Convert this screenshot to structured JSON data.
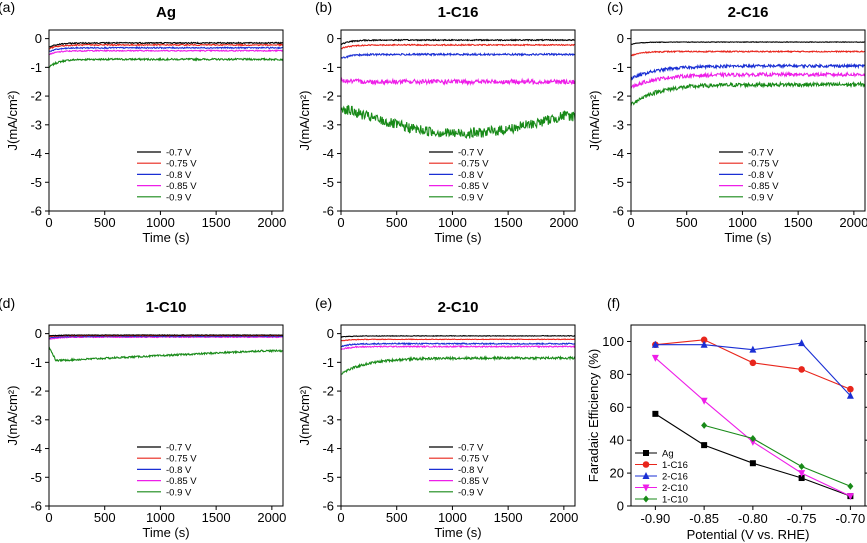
{
  "colors": {
    "black": "#000000",
    "red": "#e8261c",
    "blue": "#1a2fd4",
    "magenta": "#ee1ee8",
    "green": "#188a18"
  },
  "chart_data": [
    {
      "type": "line",
      "panel_label": "(a)",
      "title": "Ag",
      "xlabel": "Time (s)",
      "ylabel": "J(mA/cm²)",
      "xlim": [
        0,
        2100
      ],
      "ylim": [
        -6,
        0.3
      ],
      "x_ticks": [
        "0",
        "500",
        "1000",
        "1500",
        "2000"
      ],
      "y_ticks": [
        "0",
        "-1",
        "-2",
        "-3",
        "-4",
        "-5",
        "-6"
      ],
      "legend_position": "bottom-center",
      "series": [
        {
          "name": "-0.7 V",
          "color": "black",
          "start": -0.3,
          "end": -0.15,
          "noise": 0.02,
          "shape": "flat"
        },
        {
          "name": "-0.75 V",
          "color": "red",
          "start": -0.35,
          "end": -0.22,
          "noise": 0.02,
          "shape": "flat"
        },
        {
          "name": "-0.8 V",
          "color": "blue",
          "start": -0.45,
          "end": -0.32,
          "noise": 0.02,
          "shape": "flat"
        },
        {
          "name": "-0.85 V",
          "color": "magenta",
          "start": -0.55,
          "end": -0.42,
          "noise": 0.02,
          "shape": "flat"
        },
        {
          "name": "-0.9 V",
          "color": "green",
          "start": -1.0,
          "end": -0.72,
          "noise": 0.03,
          "shape": "flat"
        }
      ]
    },
    {
      "type": "line",
      "panel_label": "(b)",
      "title": "1-C16",
      "xlabel": "Time (s)",
      "ylabel": "J(mA/cm²)",
      "xlim": [
        0,
        2100
      ],
      "ylim": [
        -6,
        0.3
      ],
      "x_ticks": [
        "0",
        "500",
        "1000",
        "1500",
        "2000"
      ],
      "y_ticks": [
        "0",
        "-1",
        "-2",
        "-3",
        "-4",
        "-5",
        "-6"
      ],
      "legend_position": "bottom-center",
      "series": [
        {
          "name": "-0.7 V",
          "color": "black",
          "start": -0.2,
          "end": -0.05,
          "noise": 0.02,
          "shape": "flat"
        },
        {
          "name": "-0.75 V",
          "color": "red",
          "start": -0.35,
          "end": -0.22,
          "noise": 0.02,
          "shape": "flat"
        },
        {
          "name": "-0.8 V",
          "color": "blue",
          "start": -0.7,
          "end": -0.55,
          "noise": 0.03,
          "shape": "flat"
        },
        {
          "name": "-0.85 V",
          "color": "magenta",
          "start": -1.45,
          "end": -1.5,
          "noise": 0.08,
          "shape": "flat"
        },
        {
          "name": "-0.9 V",
          "color": "green",
          "start": -2.4,
          "end": -2.7,
          "noise": 0.18,
          "shape": "dip",
          "dip": -3.3
        }
      ]
    },
    {
      "type": "line",
      "panel_label": "(c)",
      "title": "2-C16",
      "xlabel": "Time (s)",
      "ylabel": "J(mA/cm²)",
      "xlim": [
        0,
        2100
      ],
      "ylim": [
        -6,
        0.3
      ],
      "x_ticks": [
        "0",
        "500",
        "1000",
        "1500",
        "2000"
      ],
      "y_ticks": [
        "0",
        "-1",
        "-2",
        "-3",
        "-4",
        "-5",
        "-6"
      ],
      "legend_position": "bottom-center",
      "series": [
        {
          "name": "-0.7 V",
          "color": "black",
          "start": -0.2,
          "end": -0.12,
          "noise": 0.01,
          "shape": "flat"
        },
        {
          "name": "-0.75 V",
          "color": "red",
          "start": -0.6,
          "end": -0.45,
          "noise": 0.02,
          "shape": "flat"
        },
        {
          "name": "-0.8 V",
          "color": "blue",
          "start": -1.4,
          "end": -0.95,
          "noise": 0.05,
          "shape": "rise"
        },
        {
          "name": "-0.85 V",
          "color": "magenta",
          "start": -1.7,
          "end": -1.25,
          "noise": 0.06,
          "shape": "rise"
        },
        {
          "name": "-0.9 V",
          "color": "green",
          "start": -2.3,
          "end": -1.6,
          "noise": 0.07,
          "shape": "rise"
        }
      ]
    },
    {
      "type": "line",
      "panel_label": "(d)",
      "title": "1-C10",
      "xlabel": "Time (s)",
      "ylabel": "J(mA/cm²)",
      "xlim": [
        0,
        2100
      ],
      "ylim": [
        -6,
        0.3
      ],
      "x_ticks": [
        "0",
        "500",
        "1000",
        "1500",
        "2000"
      ],
      "y_ticks": [
        "0",
        "-1",
        "-2",
        "-3",
        "-4",
        "-5",
        "-6"
      ],
      "legend_position": "bottom-center",
      "series": [
        {
          "name": "-0.7 V",
          "color": "black",
          "start": -0.08,
          "end": -0.05,
          "noise": 0.01,
          "shape": "flat"
        },
        {
          "name": "-0.75 V",
          "color": "red",
          "start": -0.1,
          "end": -0.07,
          "noise": 0.01,
          "shape": "flat"
        },
        {
          "name": "-0.8 V",
          "color": "blue",
          "start": -0.15,
          "end": -0.1,
          "noise": 0.01,
          "shape": "flat"
        },
        {
          "name": "-0.85 V",
          "color": "magenta",
          "start": -0.2,
          "end": -0.12,
          "noise": 0.015,
          "shape": "flat"
        },
        {
          "name": "-0.9 V",
          "color": "green",
          "start": -0.95,
          "end": -0.6,
          "noise": 0.03,
          "shape": "drop"
        }
      ]
    },
    {
      "type": "line",
      "panel_label": "(e)",
      "title": "2-C10",
      "xlabel": "Time (s)",
      "ylabel": "J(mA/cm²)",
      "xlim": [
        0,
        2100
      ],
      "ylim": [
        -6,
        0.3
      ],
      "x_ticks": [
        "0",
        "500",
        "1000",
        "1500",
        "2000"
      ],
      "y_ticks": [
        "0",
        "-1",
        "-2",
        "-3",
        "-4",
        "-5",
        "-6"
      ],
      "legend_position": "bottom-center",
      "series": [
        {
          "name": "-0.7 V",
          "color": "black",
          "start": -0.12,
          "end": -0.08,
          "noise": 0.01,
          "shape": "flat"
        },
        {
          "name": "-0.75 V",
          "color": "red",
          "start": -0.25,
          "end": -0.2,
          "noise": 0.01,
          "shape": "flat"
        },
        {
          "name": "-0.8 V",
          "color": "blue",
          "start": -0.45,
          "end": -0.35,
          "noise": 0.02,
          "shape": "flat"
        },
        {
          "name": "-0.85 V",
          "color": "magenta",
          "start": -0.55,
          "end": -0.45,
          "noise": 0.02,
          "shape": "flat"
        },
        {
          "name": "-0.9 V",
          "color": "green",
          "start": -1.4,
          "end": -0.85,
          "noise": 0.04,
          "shape": "rise"
        }
      ]
    },
    {
      "type": "line",
      "panel_label": "(f)",
      "title": "",
      "xlabel": "Potential (V vs. RHE)",
      "ylabel": "Faradaic Efficiency (%)",
      "x": [
        -0.9,
        -0.85,
        -0.8,
        -0.75,
        -0.7
      ],
      "x_ticks": [
        "-0.90",
        "-0.85",
        "-0.80",
        "-0.75",
        "-0.70"
      ],
      "y_ticks": [
        "0",
        "20",
        "40",
        "60",
        "80",
        "100"
      ],
      "xlim": [
        -0.925,
        -0.685
      ],
      "ylim": [
        0,
        110
      ],
      "legend_position": "bottom-left",
      "series": [
        {
          "name": "Ag",
          "color": "black",
          "marker": "square",
          "values": [
            56,
            37,
            26,
            17,
            6
          ]
        },
        {
          "name": "1-C16",
          "color": "red",
          "marker": "circle",
          "values": [
            98,
            101,
            87,
            83,
            71
          ]
        },
        {
          "name": "2-C16",
          "color": "blue",
          "marker": "triangle-up",
          "values": [
            98,
            98,
            95,
            99,
            67
          ]
        },
        {
          "name": "2-C10",
          "color": "magenta",
          "marker": "triangle-down",
          "values": [
            90,
            64,
            39,
            20,
            6
          ]
        },
        {
          "name": "1-C10",
          "color": "green",
          "marker": "diamond",
          "values": [
            null,
            49,
            41,
            24,
            12
          ]
        }
      ]
    }
  ]
}
